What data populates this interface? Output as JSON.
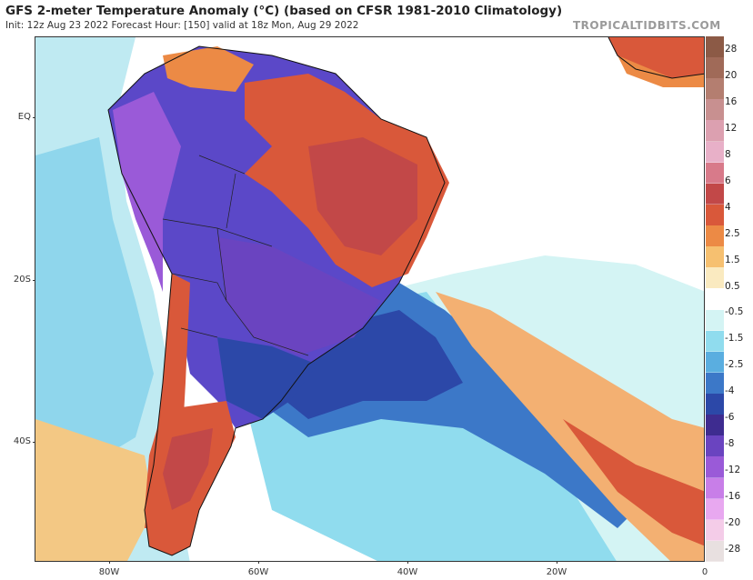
{
  "header": {
    "title": "GFS 2-meter Temperature Anomaly (°C) (based on CFSR 1981-2010 Climatology)",
    "subtitle": "Init: 12z Aug 23 2022   Forecast Hour: [150]   valid at 18z Mon, Aug 29 2022",
    "brand": "TROPICALTIDBITS.COM"
  },
  "axes": {
    "lat_labels": [
      "EQ",
      "20S",
      "40S"
    ],
    "lon_labels": [
      "80W",
      "60W",
      "40W",
      "20W",
      "0"
    ]
  },
  "colorbar": {
    "labels": [
      "28",
      "20",
      "16",
      "12",
      "8",
      "6",
      "4",
      "2.5",
      "1.5",
      "0.5",
      "-0.5",
      "-1.5",
      "-2.5",
      "-4",
      "-6",
      "-8",
      "-12",
      "-16",
      "-20",
      "-28"
    ],
    "colors": [
      "#8c5a46",
      "#a06a58",
      "#b47e70",
      "#c89090",
      "#dca0b0",
      "#e8b0c8",
      "#d87a8a",
      "#c24848",
      "#d9583a",
      "#ec8a45",
      "#f6c070",
      "#faeac0",
      "#ffffff",
      "#d4f4f4",
      "#90dcee",
      "#5aaee0",
      "#3c78c8",
      "#2c48a8",
      "#3e2c90",
      "#6a44c0",
      "#9a5ad8",
      "#c87ee8",
      "#e8a8f0",
      "#f4cce8",
      "#e8e0e0"
    ]
  },
  "map": {
    "ocean_anomaly_colors": {
      "neutral": "#ffffff",
      "slight_cool": "#d4f4f4",
      "cool": "#90dcee",
      "cold": "#3c78c8",
      "very_cold": "#2c48a8",
      "extreme_cold": "#7a48c8",
      "warm": "#f6c070",
      "hot": "#d9583a",
      "very_hot": "#c24848"
    }
  }
}
